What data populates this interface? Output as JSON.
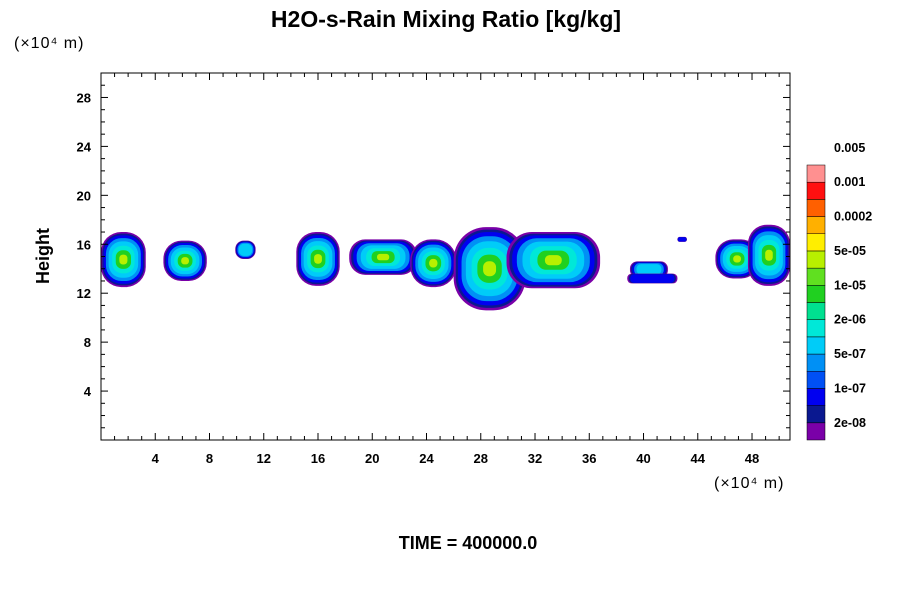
{
  "chart_data": {
    "type": "heatmap",
    "title": "H2O-s-Rain Mixing Ratio [kg/kg]",
    "ylabel": "Height",
    "x_unit_label": "(×10⁴ m)",
    "y_unit_label": "(×10⁴ m)",
    "footer": "TIME = 400000.0",
    "xlim": [
      0,
      50.8
    ],
    "ylim": [
      0,
      30
    ],
    "x_ticks": [
      4,
      8,
      12,
      16,
      20,
      24,
      28,
      32,
      36,
      40,
      44,
      48
    ],
    "y_ticks": [
      4,
      8,
      12,
      16,
      20,
      24,
      28
    ],
    "x_tick_labels": [
      "4",
      "8",
      "12",
      "16",
      "20",
      "24",
      "28",
      "32",
      "36",
      "40",
      "44",
      "48"
    ],
    "y_tick_labels": [
      "4",
      "8",
      "12",
      "16",
      "20",
      "24",
      "28"
    ],
    "grid": false,
    "legend_position": "right",
    "colorbar": {
      "colors": [
        "#7a00a8",
        "#0a1890",
        "#0000f0",
        "#0050f5",
        "#0090f5",
        "#00ccf8",
        "#00e8d8",
        "#00e090",
        "#20d020",
        "#60e020",
        "#b8f000",
        "#ffee00",
        "#ffb000",
        "#ff6000",
        "#ff1010",
        "#ff9090"
      ],
      "labels": [
        "2e-08",
        "1e-07",
        "5e-07",
        "2e-06",
        "1e-05",
        "5e-05",
        "0.0002",
        "0.001",
        "0.005"
      ]
    },
    "cloud_regions": [
      {
        "x": [
          0,
          3.3
        ],
        "y": [
          12.5,
          17
        ]
      },
      {
        "x": [
          4.6,
          7.8
        ],
        "y": [
          13,
          16.3
        ]
      },
      {
        "x": [
          9.9,
          11.4
        ],
        "y": [
          14.8,
          16.3
        ]
      },
      {
        "x": [
          14.4,
          17.6
        ],
        "y": [
          12.6,
          17
        ]
      },
      {
        "x": [
          18.3,
          23.3
        ],
        "y": [
          13.5,
          16.4
        ]
      },
      {
        "x": [
          22.8,
          26.2
        ],
        "y": [
          12.5,
          16.4
        ]
      },
      {
        "x": [
          26.0,
          31.3
        ],
        "y": [
          10.6,
          17.4
        ]
      },
      {
        "x": [
          29.9,
          36.8
        ],
        "y": [
          12.4,
          17
        ]
      },
      {
        "x": [
          39.0,
          41.8
        ],
        "y": [
          13.3,
          14.6
        ]
      },
      {
        "x": [
          38.8,
          42.5
        ],
        "y": [
          12.8,
          13.6
        ]
      },
      {
        "x": [
          42.5,
          43.2
        ],
        "y": [
          16.2,
          16.6
        ]
      },
      {
        "x": [
          45.3,
          48.5
        ],
        "y": [
          13.2,
          16.4
        ]
      },
      {
        "x": [
          47.7,
          50.8
        ],
        "y": [
          12.6,
          17.6
        ]
      }
    ]
  }
}
